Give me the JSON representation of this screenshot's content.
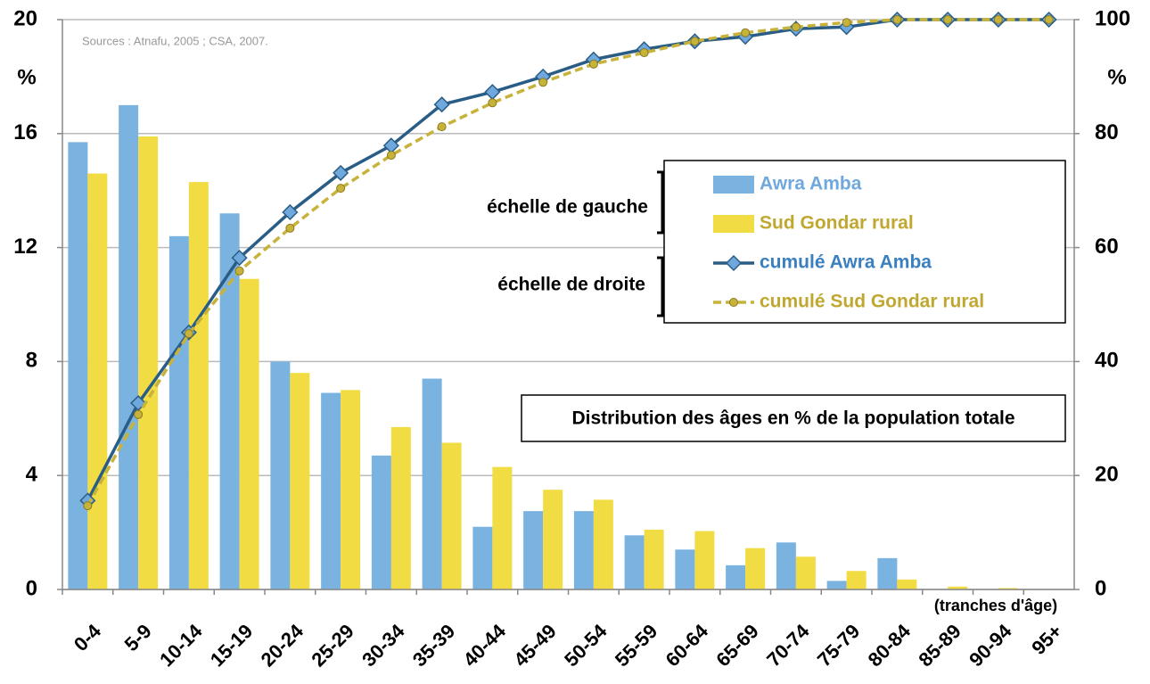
{
  "chart_data": {
    "type": "bar",
    "source": "Sources : Atnafu, 2005 ; CSA, 2007.",
    "xlabel": "(tranches d'âge)",
    "ylabel": "%",
    "y2label": "%",
    "annotation": "Distribution des âges en % de la population totale",
    "scale_labels": [
      "échelle de gauche",
      "échelle de droite"
    ],
    "categories": [
      "0-4",
      "5-9",
      "10-14",
      "15-19",
      "20-24",
      "25-29",
      "30-34",
      "35-39",
      "40-44",
      "45-49",
      "50-54",
      "55-59",
      "60-64",
      "65-69",
      "70-74",
      "75-79",
      "80-84",
      "85-89",
      "90-94",
      "95+"
    ],
    "series": [
      {
        "name": "Awra Amba",
        "type": "bar",
        "color": "#7ab2e0",
        "legend_color": "#6fa8dc",
        "values": [
          15.7,
          17.0,
          12.4,
          13.2,
          8.0,
          6.9,
          4.7,
          7.4,
          2.2,
          2.75,
          2.75,
          1.9,
          1.4,
          0.85,
          1.65,
          0.3,
          1.1,
          0,
          0,
          0
        ]
      },
      {
        "name": "Sud Gondar rural",
        "type": "bar",
        "color": "#f2dc44",
        "legend_color": "#c0a830",
        "values": [
          14.6,
          15.9,
          14.3,
          10.9,
          7.6,
          7.0,
          5.7,
          5.15,
          4.3,
          3.5,
          3.15,
          2.1,
          2.05,
          1.45,
          1.15,
          0.65,
          0.35,
          0.1,
          0.05,
          0
        ]
      },
      {
        "name": "cumulé Awra Amba",
        "type": "line",
        "axis": "y2",
        "color": "#2a5d85",
        "marker": "diamond",
        "marker_color": "#6fa8dc",
        "legend_color": "#3a7fc0",
        "values": [
          15.6,
          32.7,
          45.1,
          58.2,
          66.2,
          73.1,
          77.9,
          85.1,
          87.3,
          90.0,
          93.0,
          94.8,
          96.2,
          97.0,
          98.4,
          98.7,
          100,
          100,
          100,
          100
        ]
      },
      {
        "name": "cumulé Sud Gondar rural",
        "type": "line",
        "axis": "y2",
        "color": "#c8b33a",
        "dashed": true,
        "marker": "circle",
        "marker_color": "#c8b33a",
        "legend_color": "#c0a830",
        "values": [
          14.7,
          30.7,
          44.9,
          55.9,
          63.4,
          70.4,
          76.2,
          81.2,
          85.4,
          89.0,
          92.2,
          94.2,
          96.2,
          97.7,
          98.7,
          99.5,
          100,
          100,
          100,
          100
        ]
      }
    ],
    "ylim": [
      0,
      20
    ],
    "yticks": [
      0,
      4,
      8,
      12,
      16,
      20
    ],
    "y2lim": [
      0,
      100
    ],
    "y2ticks": [
      0,
      20,
      40,
      60,
      80,
      100
    ],
    "grid": true
  }
}
